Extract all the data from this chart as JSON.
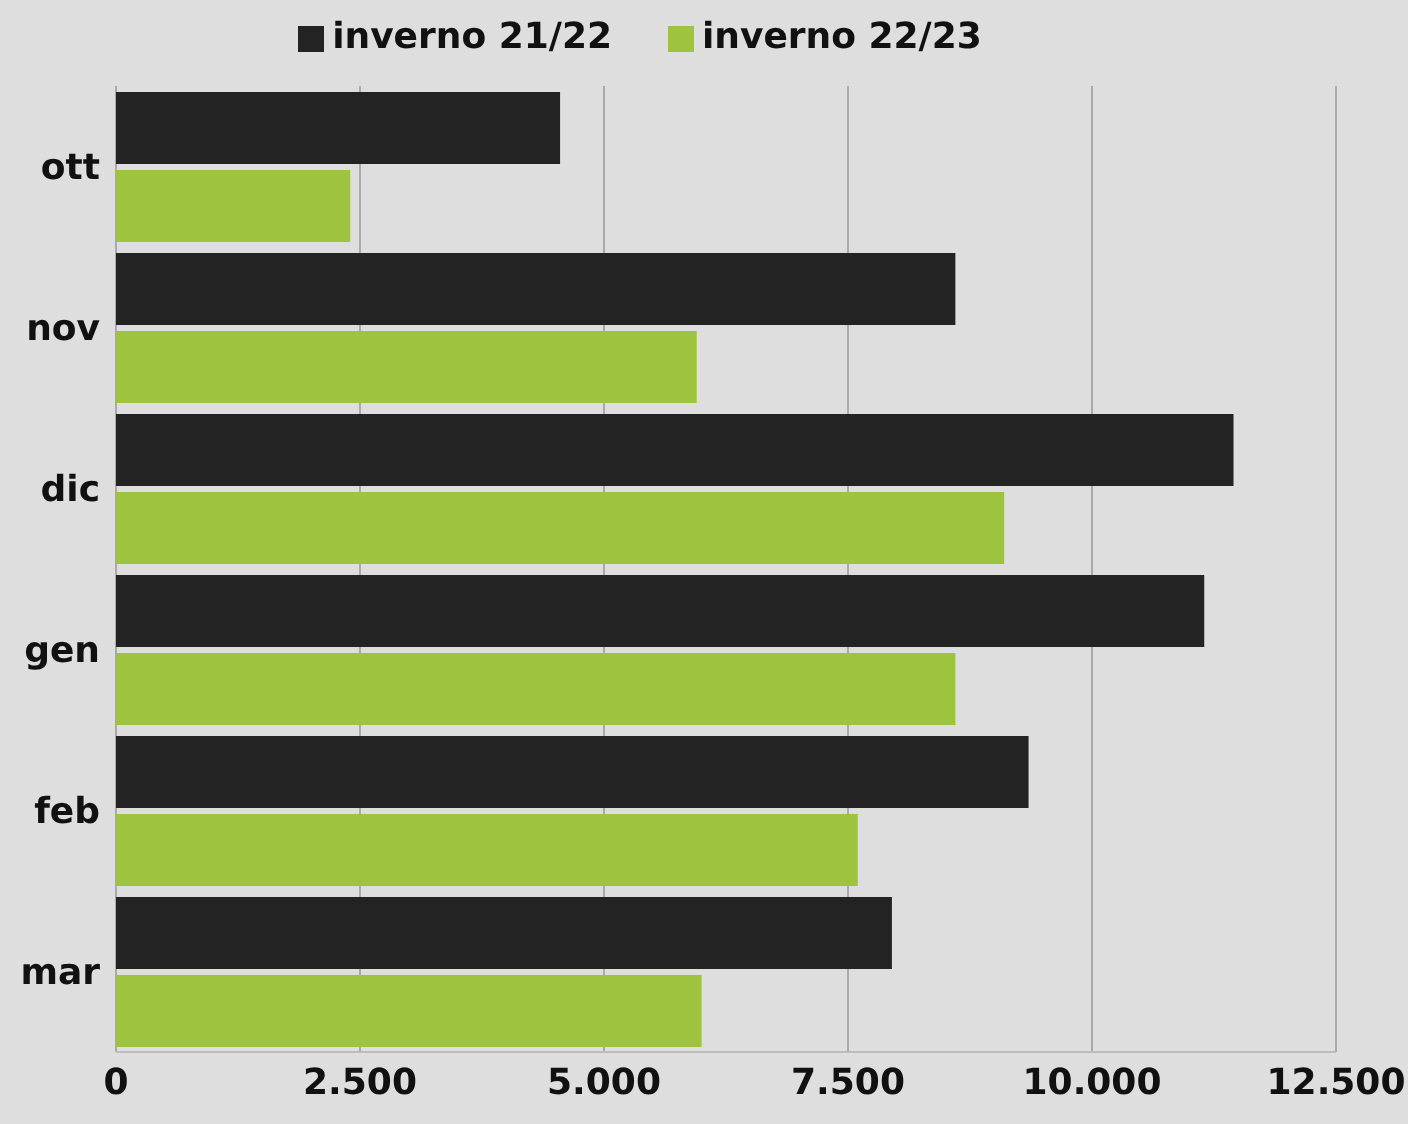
{
  "chart_data": {
    "type": "bar",
    "orientation": "horizontal",
    "categories": [
      "ott",
      "nov",
      "dic",
      "gen",
      "feb",
      "mar"
    ],
    "series": [
      {
        "name": "inverno 21/22",
        "color": "#232323",
        "values": [
          4550,
          8600,
          11450,
          11150,
          9350,
          7950
        ]
      },
      {
        "name": "inverno 22/23",
        "color": "#9dc33f",
        "values": [
          2400,
          5950,
          9100,
          8600,
          7600,
          6000
        ]
      }
    ],
    "xlim": [
      0,
      12500
    ],
    "xticks": [
      0,
      {
        "value": 2500,
        "label": "2.500"
      },
      {
        "value": 5000,
        "label": "5.000"
      },
      {
        "value": 7500,
        "label": "7.500"
      },
      {
        "value": 10000,
        "label": "10.000"
      },
      {
        "value": 12500,
        "label": "12.500"
      }
    ],
    "grid": "x",
    "legend": "top"
  }
}
